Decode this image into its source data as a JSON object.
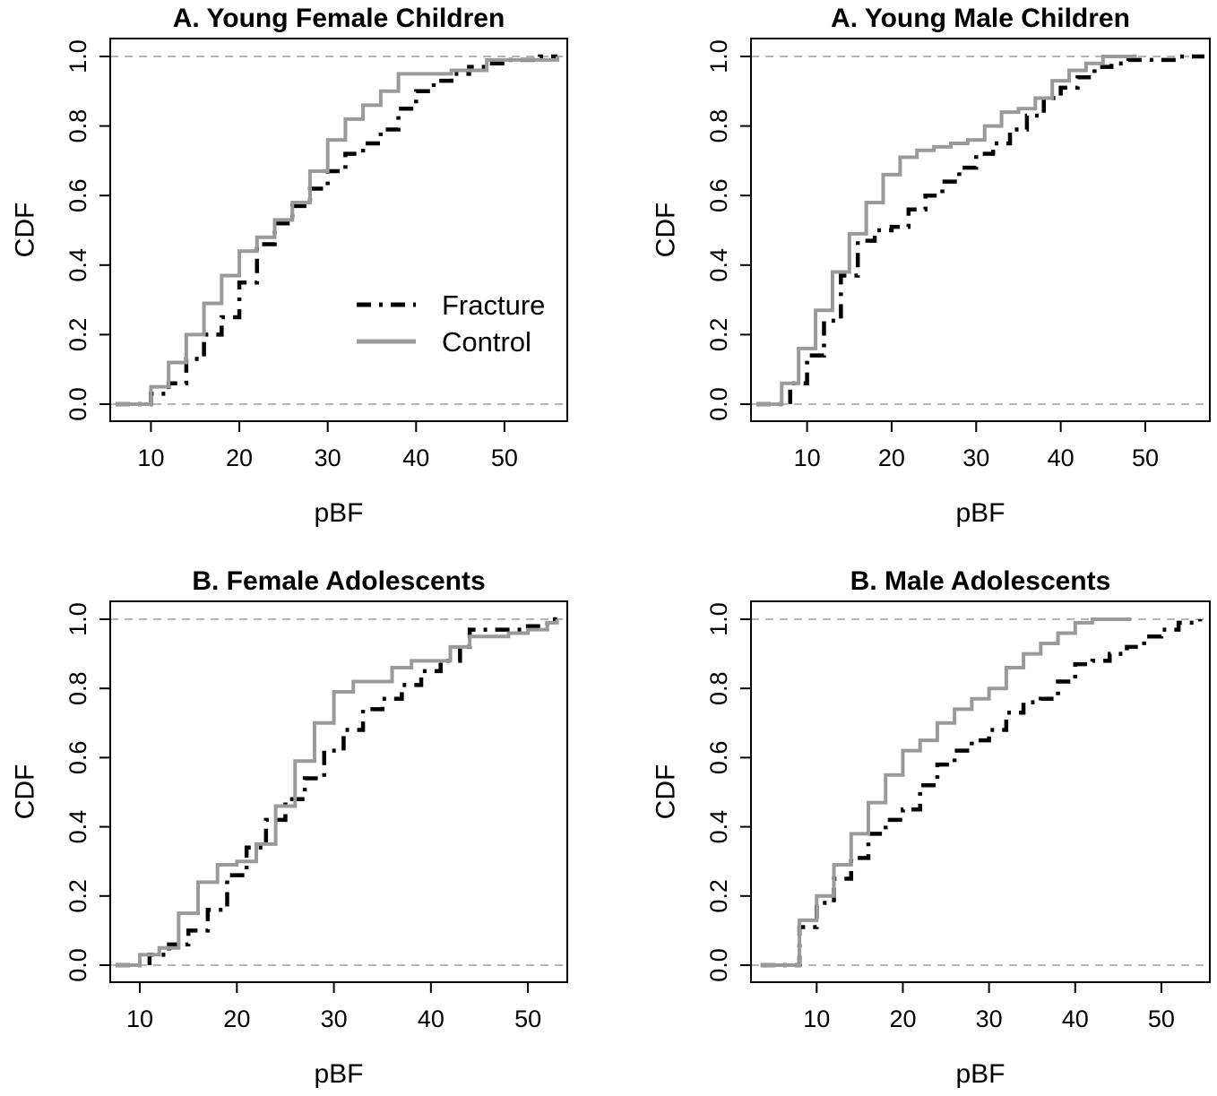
{
  "figure": {
    "colors": {
      "fracture": "#000000",
      "control": "#9a9a9a",
      "refline": "#b5b5b5"
    },
    "legend": {
      "fracture": "Fracture",
      "control": "Control"
    }
  },
  "chart_data": [
    {
      "type": "line",
      "subtype": "empirical-cdf",
      "title": "A. Young Female Children",
      "xlabel": "pBF",
      "ylabel": "CDF",
      "xlim": [
        6,
        56.5
      ],
      "ylim": [
        0,
        1
      ],
      "xticks": [
        10,
        20,
        30,
        40,
        50
      ],
      "yticks": [
        0.0,
        0.2,
        0.4,
        0.6,
        0.8,
        1.0
      ],
      "xtick_labels": [
        "10",
        "20",
        "30",
        "40",
        "50"
      ],
      "ytick_labels": [
        "0.0",
        "0.2",
        "0.4",
        "0.6",
        "0.8",
        "1.0"
      ],
      "reference_lines": [
        0,
        1
      ],
      "legend": "inside-right",
      "series": [
        {
          "name": "Fracture",
          "style": "dashed",
          "x": [
            8.5,
            10,
            12,
            14,
            16,
            18,
            20,
            22,
            24,
            26,
            28,
            30,
            32,
            34,
            36,
            38,
            40,
            42,
            44,
            46,
            48,
            50,
            52,
            54,
            56
          ],
          "y": [
            0.0,
            0.03,
            0.06,
            0.13,
            0.2,
            0.25,
            0.35,
            0.46,
            0.52,
            0.57,
            0.62,
            0.67,
            0.72,
            0.75,
            0.79,
            0.85,
            0.9,
            0.93,
            0.95,
            0.97,
            0.98,
            0.99,
            0.99,
            1.0,
            1.0
          ]
        },
        {
          "name": "Control",
          "style": "solid",
          "x": [
            7.5,
            10,
            12,
            14,
            16,
            18,
            20,
            22,
            24,
            26,
            28,
            30,
            32,
            34,
            36,
            38,
            40,
            44,
            48,
            52,
            56
          ],
          "y": [
            0.0,
            0.05,
            0.12,
            0.2,
            0.29,
            0.37,
            0.44,
            0.48,
            0.53,
            0.58,
            0.67,
            0.76,
            0.82,
            0.86,
            0.9,
            0.95,
            0.95,
            0.96,
            0.99,
            0.99,
            1.0
          ]
        }
      ]
    },
    {
      "type": "line",
      "subtype": "empirical-cdf",
      "title": "A. Young Male Children",
      "xlabel": "pBF",
      "ylabel": "CDF",
      "xlim": [
        4,
        57
      ],
      "ylim": [
        0,
        1
      ],
      "xticks": [
        10,
        20,
        30,
        40,
        50
      ],
      "yticks": [
        0.0,
        0.2,
        0.4,
        0.6,
        0.8,
        1.0
      ],
      "xtick_labels": [
        "10",
        "20",
        "30",
        "40",
        "50"
      ],
      "ytick_labels": [
        "0.0",
        "0.2",
        "0.4",
        "0.6",
        "0.8",
        "1.0"
      ],
      "reference_lines": [
        0,
        1
      ],
      "series": [
        {
          "name": "Fracture",
          "style": "dashed",
          "x": [
            6,
            8,
            10,
            12,
            14,
            16,
            18,
            20,
            22,
            24,
            26,
            28,
            30,
            32,
            34,
            36,
            38,
            40,
            42,
            44,
            46,
            48,
            50,
            52,
            54,
            57
          ],
          "y": [
            0.0,
            0.06,
            0.14,
            0.24,
            0.37,
            0.47,
            0.5,
            0.51,
            0.56,
            0.6,
            0.64,
            0.68,
            0.72,
            0.75,
            0.79,
            0.83,
            0.88,
            0.91,
            0.94,
            0.97,
            0.98,
            0.99,
            0.99,
            0.99,
            1.0,
            1.0
          ]
        },
        {
          "name": "Control",
          "style": "solid",
          "x": [
            5,
            7,
            9,
            11,
            13,
            15,
            17,
            19,
            21,
            23,
            25,
            27,
            29,
            31,
            33,
            35,
            37,
            39,
            41,
            43,
            45,
            47,
            49
          ],
          "y": [
            0.0,
            0.06,
            0.16,
            0.27,
            0.38,
            0.49,
            0.58,
            0.66,
            0.71,
            0.73,
            0.74,
            0.75,
            0.76,
            0.8,
            0.84,
            0.85,
            0.88,
            0.93,
            0.96,
            0.98,
            1.0,
            1.0,
            1.0
          ]
        }
      ]
    },
    {
      "type": "line",
      "subtype": "empirical-cdf",
      "title": "B. Female Adolescents",
      "xlabel": "pBF",
      "ylabel": "CDF",
      "xlim": [
        7.5,
        53.5
      ],
      "ylim": [
        0,
        1
      ],
      "xticks": [
        10,
        20,
        30,
        40,
        50
      ],
      "yticks": [
        0.0,
        0.2,
        0.4,
        0.6,
        0.8,
        1.0
      ],
      "xtick_labels": [
        "10",
        "20",
        "30",
        "40",
        "50"
      ],
      "ytick_labels": [
        "0.0",
        "0.2",
        "0.4",
        "0.6",
        "0.8",
        "1.0"
      ],
      "reference_lines": [
        0,
        1
      ],
      "series": [
        {
          "name": "Fracture",
          "style": "dashed",
          "x": [
            9,
            11,
            13,
            15,
            17,
            19,
            21,
            23,
            25,
            27,
            29,
            31,
            33,
            35,
            37,
            39,
            41,
            43,
            44,
            46,
            48,
            50,
            52,
            53
          ],
          "y": [
            0.0,
            0.03,
            0.06,
            0.1,
            0.16,
            0.26,
            0.34,
            0.42,
            0.48,
            0.54,
            0.62,
            0.68,
            0.74,
            0.77,
            0.81,
            0.85,
            0.88,
            0.92,
            0.97,
            0.97,
            0.97,
            0.98,
            1.0,
            1.0
          ]
        },
        {
          "name": "Control",
          "style": "solid",
          "x": [
            8.5,
            10,
            12,
            14,
            16,
            18,
            20,
            22,
            24,
            26,
            28,
            30,
            32,
            34,
            36,
            38,
            40,
            42,
            44,
            46,
            48,
            50,
            52,
            53
          ],
          "y": [
            0.0,
            0.03,
            0.05,
            0.15,
            0.24,
            0.29,
            0.3,
            0.35,
            0.46,
            0.59,
            0.7,
            0.79,
            0.82,
            0.82,
            0.86,
            0.88,
            0.88,
            0.92,
            0.95,
            0.95,
            0.96,
            0.97,
            0.99,
            1.0
          ]
        }
      ]
    },
    {
      "type": "line",
      "subtype": "empirical-cdf",
      "title": "B. Male Adolescents",
      "xlabel": "pBF",
      "ylabel": "CDF",
      "xlim": [
        3,
        55
      ],
      "ylim": [
        0,
        1
      ],
      "xticks": [
        10,
        20,
        30,
        40,
        50
      ],
      "yticks": [
        0.0,
        0.2,
        0.4,
        0.6,
        0.8,
        1.0
      ],
      "xtick_labels": [
        "10",
        "20",
        "30",
        "40",
        "50"
      ],
      "ytick_labels": [
        "0.0",
        "0.2",
        "0.4",
        "0.6",
        "0.8",
        "1.0"
      ],
      "reference_lines": [
        0,
        1
      ],
      "series": [
        {
          "name": "Fracture",
          "style": "dashed",
          "x": [
            6,
            8,
            10,
            12,
            14,
            16,
            18,
            20,
            22,
            24,
            26,
            28,
            30,
            32,
            34,
            36,
            38,
            40,
            42,
            44,
            46,
            48,
            50,
            52,
            54.5
          ],
          "y": [
            0.0,
            0.11,
            0.18,
            0.25,
            0.31,
            0.38,
            0.42,
            0.45,
            0.52,
            0.58,
            0.62,
            0.65,
            0.68,
            0.73,
            0.76,
            0.77,
            0.82,
            0.87,
            0.88,
            0.9,
            0.92,
            0.95,
            0.97,
            0.99,
            1.0
          ]
        },
        {
          "name": "Control",
          "style": "solid",
          "x": [
            6,
            8,
            10,
            12,
            14,
            16,
            18,
            20,
            22,
            24,
            26,
            28,
            30,
            32,
            34,
            36,
            38,
            40,
            42,
            44,
            46.5
          ],
          "y": [
            0.0,
            0.13,
            0.2,
            0.29,
            0.38,
            0.47,
            0.55,
            0.62,
            0.65,
            0.7,
            0.74,
            0.77,
            0.8,
            0.86,
            0.9,
            0.93,
            0.96,
            0.99,
            1.0,
            1.0,
            1.0
          ]
        }
      ]
    }
  ]
}
